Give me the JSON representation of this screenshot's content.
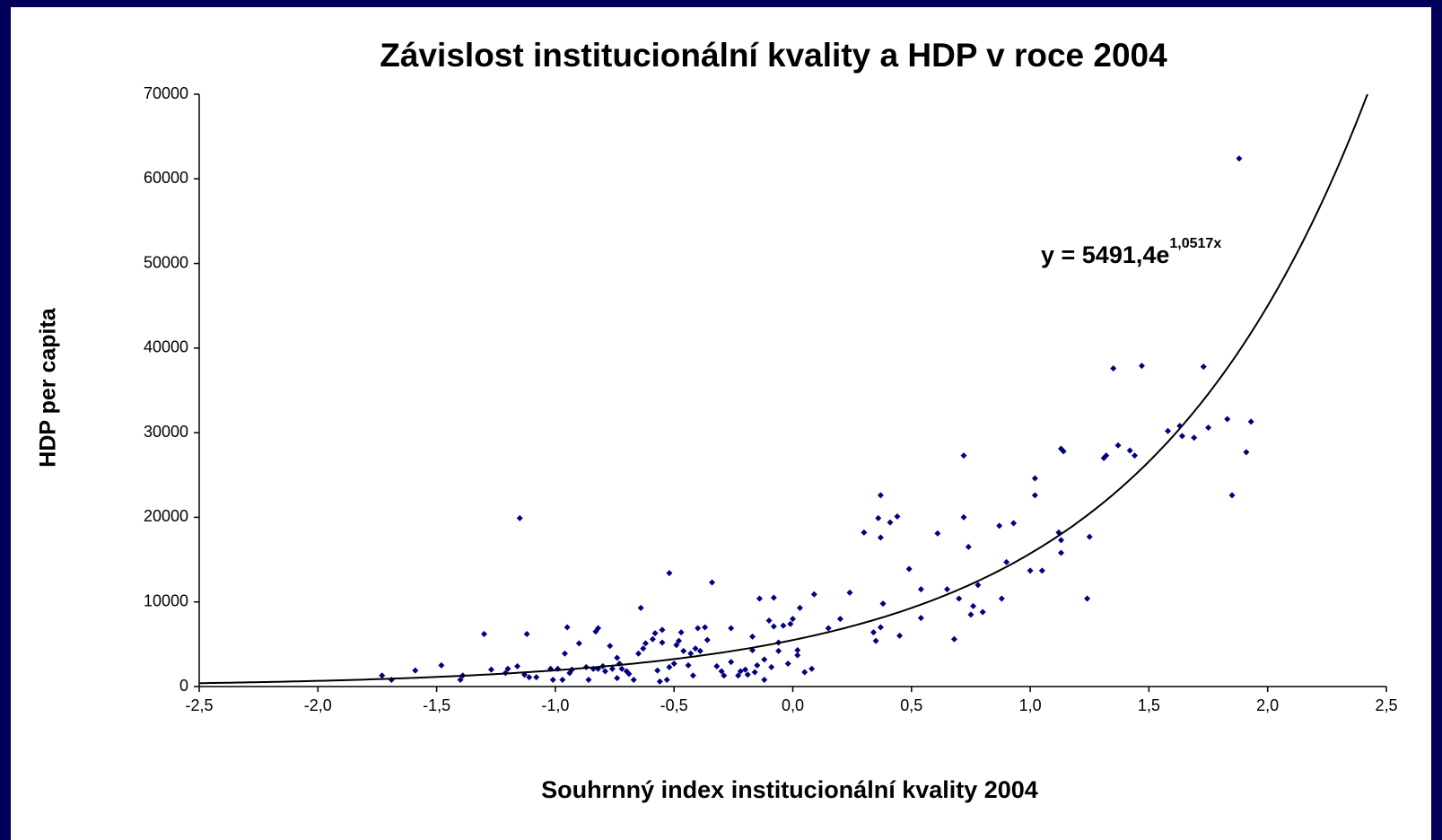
{
  "chart_data": {
    "type": "scatter",
    "title": "Závislost institucionální kvality a HDP v roce 2004",
    "x_label": "Souhrnný index institucionální kvality 2004",
    "y_label": "HDP per capita",
    "xlim": [
      -2.5,
      2.5
    ],
    "xticks": [
      {
        "value": -2.5,
        "label": "-2,5"
      },
      {
        "value": -2.0,
        "label": "-2,0"
      },
      {
        "value": -1.5,
        "label": "-1,5"
      },
      {
        "value": -1.0,
        "label": "-1,0"
      },
      {
        "value": -0.5,
        "label": "-0,5"
      },
      {
        "value": 0,
        "label": "0,0"
      },
      {
        "value": 0.5,
        "label": "0,5"
      },
      {
        "value": 1.0,
        "label": "1,0"
      },
      {
        "value": 1.5,
        "label": "1,5"
      },
      {
        "value": 2.0,
        "label": "2,0"
      },
      {
        "value": 2.5,
        "label": "2,5"
      }
    ],
    "ylim": [
      0,
      70000
    ],
    "yticks": [
      0,
      10000,
      20000,
      30000,
      40000,
      50000,
      60000,
      70000
    ],
    "trendline": {
      "a": 5491.4,
      "b": 1.0517,
      "label": "y = 5491,4e",
      "exponent_label": "1,0517x",
      "color": "#000000"
    },
    "series": [
      {
        "color": "#000080",
        "x": [
          -1.73,
          -1.69,
          -1.59,
          -1.48,
          -1.4,
          -1.39,
          -1.3,
          -1.27,
          -1.21,
          -1.2,
          -1.16,
          -1.15,
          -1.13,
          -1.12,
          -1.11,
          -1.08,
          -1.02,
          -1.01,
          -0.99,
          -0.97,
          -0.96,
          -0.95,
          -0.94,
          -0.93,
          -0.9,
          -0.87,
          -0.86,
          -0.84,
          -0.83,
          -0.82,
          -0.82,
          -0.8,
          -0.79,
          -0.77,
          -0.76,
          -0.74,
          -0.74,
          -0.73,
          -0.72,
          -0.7,
          -0.69,
          -0.67,
          -0.65,
          -0.64,
          -0.63,
          -0.62,
          -0.59,
          -0.58,
          -0.57,
          -0.56,
          -0.55,
          -0.55,
          -0.53,
          -0.52,
          -0.52,
          -0.5,
          -0.49,
          -0.48,
          -0.47,
          -0.46,
          -0.44,
          -0.43,
          -0.42,
          -0.41,
          -0.4,
          -0.39,
          -0.37,
          -0.36,
          -0.34,
          -0.32,
          -0.3,
          -0.29,
          -0.26,
          -0.26,
          -0.23,
          -0.22,
          -0.2,
          -0.19,
          -0.17,
          -0.17,
          -0.16,
          -0.15,
          -0.14,
          -0.12,
          -0.12,
          -0.1,
          -0.09,
          -0.08,
          -0.08,
          -0.06,
          -0.06,
          -0.04,
          -0.02,
          -0.01,
          0.0,
          0.02,
          0.02,
          0.03,
          0.05,
          0.08,
          0.09,
          0.15,
          0.2,
          0.24,
          0.3,
          0.34,
          0.35,
          0.36,
          0.37,
          0.37,
          0.37,
          0.38,
          0.41,
          0.44,
          0.45,
          0.49,
          0.54,
          0.54,
          0.61,
          0.65,
          0.68,
          0.7,
          0.72,
          0.72,
          0.74,
          0.75,
          0.76,
          0.78,
          0.8,
          0.87,
          0.88,
          0.9,
          0.93,
          1.0,
          1.02,
          1.02,
          1.05,
          1.12,
          1.13,
          1.13,
          1.13,
          1.14,
          1.24,
          1.25,
          1.31,
          1.32,
          1.35,
          1.37,
          1.42,
          1.44,
          1.47,
          1.58,
          1.63,
          1.64,
          1.69,
          1.73,
          1.75,
          1.83,
          1.85,
          1.88,
          1.91,
          1.93
        ],
        "values": [
          1300,
          800,
          1900,
          2500,
          800,
          1300,
          6200,
          2000,
          1600,
          2100,
          2400,
          19900,
          1400,
          6200,
          1100,
          1100,
          2100,
          800,
          2100,
          800,
          3900,
          7000,
          1600,
          2000,
          5100,
          2300,
          800,
          2100,
          6500,
          6900,
          2100,
          2400,
          1800,
          4800,
          2100,
          1000,
          3400,
          2700,
          2100,
          1800,
          1500,
          800,
          3900,
          9300,
          4500,
          5100,
          5600,
          6300,
          1900,
          600,
          6700,
          5200,
          800,
          2300,
          13400,
          2700,
          4900,
          5400,
          6400,
          4200,
          2500,
          3900,
          1300,
          4500,
          6900,
          4200,
          7000,
          5500,
          12300,
          2400,
          1800,
          1300,
          2900,
          6900,
          1300,
          1800,
          2000,
          1400,
          4300,
          5900,
          1700,
          2500,
          10400,
          3200,
          800,
          7800,
          2300,
          7100,
          10500,
          5200,
          4200,
          7200,
          2700,
          7400,
          8000,
          3700,
          4300,
          9300,
          1700,
          2100,
          10900,
          6900,
          8000,
          11100,
          18200,
          6400,
          5400,
          19900,
          17600,
          22600,
          7000,
          9800,
          19400,
          20100,
          6000,
          13900,
          11500,
          8100,
          18100,
          11500,
          5600,
          10400,
          27300,
          20000,
          16500,
          8500,
          9500,
          12000,
          8800,
          19000,
          10400,
          14700,
          19300,
          13700,
          22600,
          24600,
          13700,
          18200,
          17300,
          15800,
          28100,
          27800,
          10400,
          17700,
          27000,
          27300,
          37600,
          28500,
          27900,
          27300,
          37900,
          30200,
          30800,
          29600,
          29400,
          37800,
          30600,
          31600,
          22600,
          62400,
          27700,
          31300
        ]
      }
    ]
  }
}
